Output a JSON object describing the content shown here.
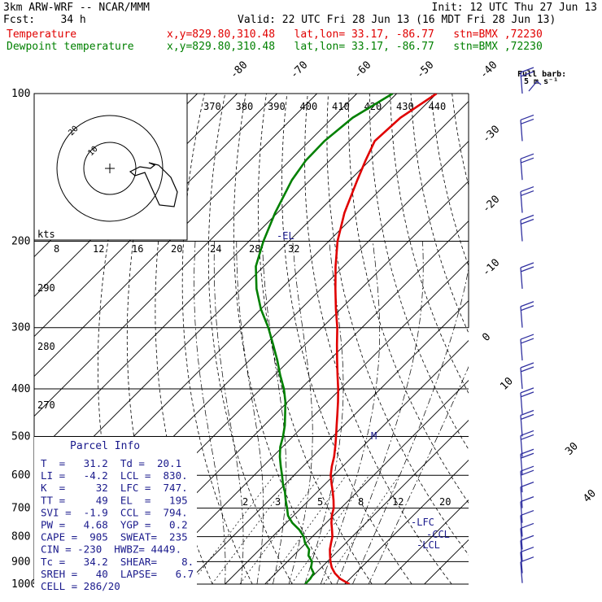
{
  "header": {
    "model": "3km ARW-WRF -- NCAR/MMM",
    "init": "Init: 12 UTC Thu 27 Jun 13",
    "fcst": "Fcst:    34 h",
    "valid": "Valid: 22 UTC Fri 28 Jun 13 (16 MDT Fri 28 Jun 13)",
    "temp_line": {
      "label": "Temperature",
      "loc": "x,y=829.80,310.48   lat,lon= 33.17, -86.77   stn=BMX ,72230"
    },
    "dew_line": {
      "label": "Dewpoint temperature",
      "loc": "x,y=829.80,310.48   lat,lon= 33.17, -86.77   stn=BMX ,72230"
    }
  },
  "barb_legend": {
    "title": "Full barb:",
    "value": "5 m s⁻¹"
  },
  "parcel_info": {
    "title": "Parcel Info",
    "rows": [
      "T  =   31.2  Td =  20.1",
      "LI =   -4.2  LCL =  830.",
      "K  =     32  LFC =  747.",
      "TT =     49  EL  =   195",
      "SVI =  -1.9  CCL =  794.",
      "PW =   4.68  YGP =   0.2",
      "CAPE =  905  SWEAT=  235",
      "CIN = -230  HWBZ= 4449.",
      "Tc =   34.2  SHEAR=    8.",
      "SREH =   40  LAPSE=   6.7",
      "CELL = 286/20"
    ]
  },
  "hodograph": {
    "units": "kts",
    "ring_labels": [
      "10",
      "20"
    ]
  },
  "level_markers": [
    "-EL",
    "-LFC",
    "-CCL",
    "-LCL",
    "M"
  ],
  "colors": {
    "temperature": "#e00000",
    "dewpoint": "#008000",
    "isotherm": "#000000",
    "barb": "#3030a0",
    "parcel_text": "#1a1a8c"
  },
  "chart_data": {
    "type": "line",
    "subtype": "skew-T log-P",
    "y_axis": {
      "scale": "log",
      "ticks": [
        100,
        200,
        300,
        400,
        500,
        600,
        700,
        800,
        900,
        1000
      ]
    },
    "isotherm_labels": [
      "-80",
      "-70",
      "-60",
      "-50",
      "-40",
      "-30",
      "-20",
      "-10",
      "0",
      "10",
      "30",
      "40"
    ],
    "theta_labels": [
      "370",
      "380",
      "390",
      "400",
      "410",
      "420",
      "430",
      "440"
    ],
    "theta_left_labels": [
      "290",
      "280",
      "270"
    ],
    "mixing_ratio_labels_top": [
      "8",
      "12",
      "16",
      "20",
      "24",
      "28",
      "32"
    ],
    "mixing_ratio_labels_low": [
      "2",
      "3",
      "5",
      "8",
      "12",
      "20"
    ],
    "series": [
      {
        "name": "Temperature",
        "p": [
          1000,
          975,
          950,
          925,
          900,
          875,
          850,
          825,
          800,
          775,
          750,
          725,
          700,
          675,
          650,
          625,
          600,
          575,
          550,
          525,
          500,
          475,
          450,
          425,
          400,
          375,
          350,
          325,
          300,
          275,
          250,
          225,
          200,
          175,
          150,
          137,
          125,
          112,
          100
        ],
        "t": [
          31.2,
          27.5,
          24.8,
          22.6,
          20.8,
          19.2,
          17.6,
          16.3,
          15.0,
          13.2,
          11.3,
          9.6,
          8.2,
          6.2,
          4.0,
          1.6,
          -0.8,
          -2.8,
          -4.6,
          -6.8,
          -9.2,
          -11.8,
          -14.5,
          -17.4,
          -20.6,
          -24.2,
          -28.0,
          -32.0,
          -36.2,
          -41.2,
          -46.4,
          -52.0,
          -57.8,
          -63.2,
          -68.2,
          -71.0,
          -73.6,
          -73.0,
          -70.0
        ]
      },
      {
        "name": "Dewpoint temperature",
        "p": [
          1000,
          975,
          950,
          925,
          900,
          875,
          850,
          825,
          800,
          775,
          750,
          725,
          700,
          675,
          650,
          625,
          600,
          575,
          550,
          525,
          500,
          475,
          450,
          425,
          400,
          375,
          350,
          325,
          300,
          275,
          250,
          225,
          200,
          175,
          150,
          137,
          125,
          112,
          100
        ],
        "td": [
          20.1,
          20.0,
          19.5,
          17.4,
          16.2,
          13.8,
          12.4,
          9.8,
          7.8,
          5.0,
          1.5,
          -1.4,
          -3.5,
          -5.8,
          -8.0,
          -10.6,
          -13.0,
          -15.6,
          -18.2,
          -20.6,
          -22.5,
          -24.8,
          -27.6,
          -30.6,
          -34.2,
          -38.6,
          -43.0,
          -48.0,
          -53.5,
          -60.0,
          -66.2,
          -72.0,
          -76.4,
          -80.6,
          -84.6,
          -86.0,
          -86.2,
          -85.0,
          -81.0
        ]
      }
    ],
    "wind_barbs": {
      "p": [
        995,
        950,
        900,
        850,
        800,
        750,
        700,
        650,
        600,
        550,
        500,
        450,
        400,
        350,
        300,
        250,
        200,
        175,
        150,
        125,
        100
      ],
      "count_full_barbs": [
        1,
        1,
        1,
        1,
        1,
        1,
        1,
        2,
        2,
        2,
        2,
        2,
        2,
        2,
        2,
        2,
        2,
        2,
        2,
        2,
        2
      ]
    }
  }
}
